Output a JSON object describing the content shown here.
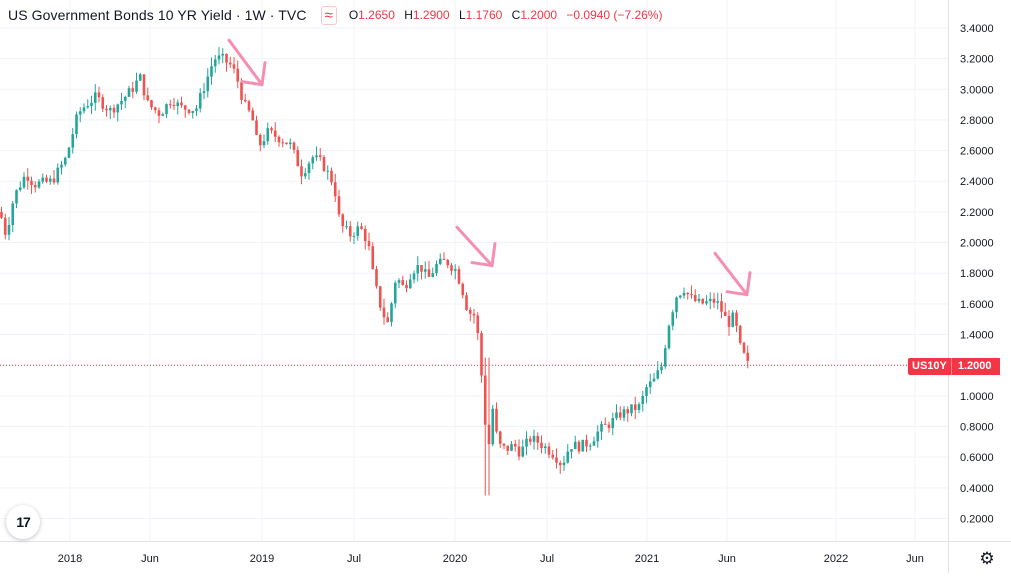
{
  "legend": {
    "title": "US Government Bonds 10 YR Yield · 1W · TVC",
    "compare_icon": "≈",
    "open_key": "O",
    "open": "1.2650",
    "high_key": "H",
    "high": "1.2900",
    "low_key": "L",
    "low": "1.1760",
    "close_key": "C",
    "close": "1.2000",
    "change": "−0.0940 (−7.26%)"
  },
  "price_tag": {
    "symbol": "US10Y",
    "value": "1.2000"
  },
  "logo_text": "17",
  "icons": {
    "settings": "gear-icon",
    "compare": "compare-icon",
    "logo": "tradingview-logo-icon"
  },
  "colors": {
    "up": "#26a69a",
    "down": "#ef5350",
    "arrow": "#f48fb1",
    "grid": "#f0f3fa",
    "last_price": "#f23645"
  },
  "chart_data": {
    "type": "candlestick",
    "timeframe": "1W",
    "ylim": [
      0.1,
      3.5
    ],
    "y_ticks": [
      "0.2000",
      "0.4000",
      "0.6000",
      "0.8000",
      "1.0000",
      "1.2000",
      "1.4000",
      "1.6000",
      "1.8000",
      "2.0000",
      "2.2000",
      "2.4000",
      "2.6000",
      "2.8000",
      "3.0000",
      "3.2000",
      "3.4000"
    ],
    "x_ticks": [
      "2018",
      "Jun",
      "2019",
      "Jul",
      "2020",
      "Jul",
      "2021",
      "Jun",
      "2022",
      "Jun"
    ],
    "last_price": 1.2,
    "path": [
      [
        0,
        2.2
      ],
      [
        6,
        2.05
      ],
      [
        14,
        2.3
      ],
      [
        26,
        2.45
      ],
      [
        34,
        2.38
      ],
      [
        52,
        2.4
      ],
      [
        66,
        2.55
      ],
      [
        78,
        2.84
      ],
      [
        86,
        2.9
      ],
      [
        96,
        2.95
      ],
      [
        110,
        2.86
      ],
      [
        122,
        2.93
      ],
      [
        132,
        3.0
      ],
      [
        140,
        3.08
      ],
      [
        148,
        2.9
      ],
      [
        160,
        2.84
      ],
      [
        172,
        2.94
      ],
      [
        180,
        2.88
      ],
      [
        196,
        2.87
      ],
      [
        206,
        3.05
      ],
      [
        214,
        3.2
      ],
      [
        222,
        3.2
      ],
      [
        232,
        3.15
      ],
      [
        238,
        3.05
      ],
      [
        244,
        2.9
      ],
      [
        252,
        2.82
      ],
      [
        258,
        2.62
      ],
      [
        268,
        2.72
      ],
      [
        280,
        2.68
      ],
      [
        290,
        2.64
      ],
      [
        302,
        2.45
      ],
      [
        312,
        2.56
      ],
      [
        322,
        2.52
      ],
      [
        334,
        2.38
      ],
      [
        340,
        2.12
      ],
      [
        350,
        2.05
      ],
      [
        360,
        2.1
      ],
      [
        368,
        2.0
      ],
      [
        374,
        1.75
      ],
      [
        382,
        1.55
      ],
      [
        388,
        1.47
      ],
      [
        396,
        1.78
      ],
      [
        404,
        1.7
      ],
      [
        412,
        1.82
      ],
      [
        420,
        1.85
      ],
      [
        428,
        1.76
      ],
      [
        436,
        1.85
      ],
      [
        446,
        1.88
      ],
      [
        456,
        1.82
      ],
      [
        462,
        1.7
      ],
      [
        468,
        1.55
      ],
      [
        476,
        1.52
      ],
      [
        482,
        1.1
      ],
      [
        488,
        0.6
      ],
      [
        492,
        0.95
      ],
      [
        498,
        0.68
      ],
      [
        506,
        0.65
      ],
      [
        514,
        0.68
      ],
      [
        520,
        0.63
      ],
      [
        530,
        0.72
      ],
      [
        538,
        0.7
      ],
      [
        546,
        0.66
      ],
      [
        554,
        0.62
      ],
      [
        562,
        0.55
      ],
      [
        570,
        0.68
      ],
      [
        580,
        0.67
      ],
      [
        590,
        0.7
      ],
      [
        600,
        0.78
      ],
      [
        610,
        0.82
      ],
      [
        620,
        0.88
      ],
      [
        630,
        0.91
      ],
      [
        640,
        0.93
      ],
      [
        646,
        1.05
      ],
      [
        654,
        1.1
      ],
      [
        662,
        1.2
      ],
      [
        668,
        1.45
      ],
      [
        676,
        1.65
      ],
      [
        684,
        1.7
      ],
      [
        690,
        1.64
      ],
      [
        700,
        1.6
      ],
      [
        708,
        1.61
      ],
      [
        716,
        1.62
      ],
      [
        722,
        1.55
      ],
      [
        728,
        1.47
      ],
      [
        734,
        1.52
      ],
      [
        740,
        1.32
      ],
      [
        748,
        1.2
      ]
    ],
    "annotations": [
      {
        "type": "arrow",
        "from": [
          229,
          3.32
        ],
        "to": [
          262,
          3.03
        ]
      },
      {
        "type": "arrow",
        "from": [
          457,
          2.1
        ],
        "to": [
          492,
          1.85
        ]
      },
      {
        "type": "arrow",
        "from": [
          715,
          1.93
        ],
        "to": [
          747,
          1.66
        ]
      }
    ]
  }
}
